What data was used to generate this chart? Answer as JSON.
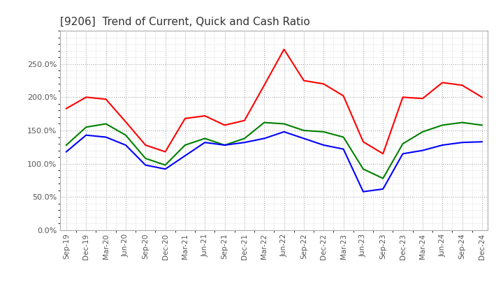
{
  "title": "[9206]  Trend of Current, Quick and Cash Ratio",
  "x_labels": [
    "Sep-19",
    "Dec-19",
    "Mar-20",
    "Jun-20",
    "Sep-20",
    "Dec-20",
    "Mar-21",
    "Jun-21",
    "Sep-21",
    "Dec-21",
    "Mar-22",
    "Jun-22",
    "Sep-22",
    "Dec-22",
    "Mar-23",
    "Jun-23",
    "Sep-23",
    "Dec-23",
    "Mar-24",
    "Jun-24",
    "Sep-24",
    "Dec-24"
  ],
  "current_ratio": [
    183,
    200,
    197,
    163,
    128,
    118,
    168,
    172,
    158,
    165,
    218,
    272,
    225,
    220,
    202,
    133,
    115,
    200,
    198,
    222,
    218,
    200
  ],
  "quick_ratio": [
    128,
    155,
    160,
    143,
    108,
    98,
    128,
    138,
    128,
    138,
    162,
    160,
    150,
    148,
    140,
    92,
    78,
    130,
    148,
    158,
    162,
    158
  ],
  "cash_ratio": [
    118,
    143,
    140,
    128,
    98,
    92,
    112,
    132,
    128,
    132,
    138,
    148,
    138,
    128,
    122,
    58,
    62,
    115,
    120,
    128,
    132,
    133
  ],
  "current_color": "#ff0000",
  "quick_color": "#008000",
  "cash_color": "#0000ff",
  "ylim": [
    0,
    300
  ],
  "yticks": [
    0,
    50,
    100,
    150,
    200,
    250
  ],
  "background_color": "#ffffff",
  "grid_color": "#aaaaaa",
  "grid_minor_color": "#cccccc"
}
